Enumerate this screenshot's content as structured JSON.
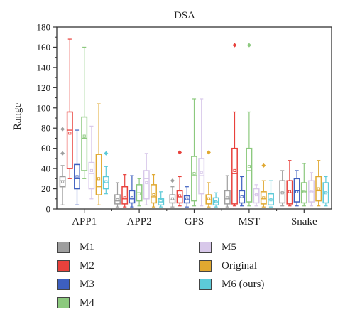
{
  "chart_data": {
    "type": "box",
    "title": "DSA",
    "ylabel": "Range",
    "xlabel": "",
    "ylim": [
      0,
      180
    ],
    "yticks": [
      "0",
      "20",
      "40",
      "60",
      "80",
      "100",
      "120",
      "140",
      "160",
      "180"
    ],
    "grid": false,
    "legend_placement": "bottom, two columns",
    "categories": [
      "APP1",
      "APP2",
      "GPS",
      "MST",
      "Snake"
    ],
    "series": [
      {
        "name": "M1",
        "color": "#9e9e9e",
        "boxes": [
          {
            "whislo": 4,
            "q1": 22,
            "med": 28,
            "mean": 27,
            "q3": 32,
            "whishi": 43,
            "fliers": [
              55,
              79
            ]
          },
          {
            "whislo": 2,
            "q1": 5,
            "med": 8,
            "mean": 9,
            "q3": 14,
            "whishi": 26,
            "fliers": []
          },
          {
            "whislo": 2,
            "q1": 6,
            "med": 9,
            "mean": 10,
            "q3": 14,
            "whishi": 22,
            "fliers": [
              28
            ]
          },
          {
            "whislo": 2,
            "q1": 5,
            "med": 10,
            "mean": 11,
            "q3": 18,
            "whishi": 33,
            "fliers": []
          },
          {
            "whislo": 3,
            "q1": 6,
            "med": 16,
            "mean": 16,
            "q3": 28,
            "whishi": 38,
            "fliers": []
          }
        ]
      },
      {
        "name": "M2",
        "color": "#e8413c",
        "boxes": [
          {
            "whislo": 30,
            "q1": 40,
            "med": 78,
            "mean": 75,
            "q3": 96,
            "whishi": 168,
            "fliers": []
          },
          {
            "whislo": 2,
            "q1": 5,
            "med": 10,
            "mean": 11,
            "q3": 22,
            "whishi": 34,
            "fliers": []
          },
          {
            "whislo": 3,
            "q1": 6,
            "med": 12,
            "mean": 13,
            "q3": 18,
            "whishi": 32,
            "fliers": [
              56
            ]
          },
          {
            "whislo": 3,
            "q1": 5,
            "med": 35,
            "mean": 38,
            "q3": 60,
            "whishi": 96,
            "fliers": [
              162
            ]
          },
          {
            "whislo": 3,
            "q1": 5,
            "med": 16,
            "mean": 17,
            "q3": 28,
            "whishi": 48,
            "fliers": []
          }
        ]
      },
      {
        "name": "M3",
        "color": "#3d5fbf",
        "boxes": [
          {
            "whislo": 4,
            "q1": 20,
            "med": 30,
            "mean": 32,
            "q3": 44,
            "whishi": 78,
            "fliers": []
          },
          {
            "whislo": 2,
            "q1": 6,
            "med": 10,
            "mean": 11,
            "q3": 18,
            "whishi": 33,
            "fliers": []
          },
          {
            "whislo": 2,
            "q1": 6,
            "med": 9,
            "mean": 10,
            "q3": 13,
            "whishi": 22,
            "fliers": []
          },
          {
            "whislo": 3,
            "q1": 6,
            "med": 11,
            "mean": 12,
            "q3": 18,
            "whishi": 32,
            "fliers": []
          },
          {
            "whislo": 3,
            "q1": 7,
            "med": 18,
            "mean": 17,
            "q3": 30,
            "whishi": 38,
            "fliers": []
          }
        ]
      },
      {
        "name": "M4",
        "color": "#8cc97e",
        "boxes": [
          {
            "whislo": 30,
            "q1": 38,
            "med": 70,
            "mean": 72,
            "q3": 91,
            "whishi": 160,
            "fliers": []
          },
          {
            "whislo": 3,
            "q1": 8,
            "med": 16,
            "mean": 15,
            "q3": 24,
            "whishi": 30,
            "fliers": []
          },
          {
            "whislo": 3,
            "q1": 8,
            "med": 33,
            "mean": 35,
            "q3": 52,
            "whishi": 109,
            "fliers": []
          },
          {
            "whislo": 3,
            "q1": 7,
            "med": 38,
            "mean": 42,
            "q3": 60,
            "whishi": 96,
            "fliers": [
              162
            ]
          },
          {
            "whislo": 3,
            "q1": 6,
            "med": 17,
            "mean": 17,
            "q3": 26,
            "whishi": 45,
            "fliers": []
          }
        ]
      },
      {
        "name": "M5",
        "color": "#d8c8ea",
        "boxes": [
          {
            "whislo": 10,
            "q1": 20,
            "med": 35,
            "mean": 38,
            "q3": 46,
            "whishi": 82,
            "fliers": []
          },
          {
            "whislo": 4,
            "q1": 10,
            "med": 30,
            "mean": 26,
            "q3": 38,
            "whishi": 55,
            "fliers": []
          },
          {
            "whislo": 3,
            "q1": 15,
            "med": 33,
            "mean": 36,
            "q3": 50,
            "whishi": 109,
            "fliers": []
          },
          {
            "whislo": 3,
            "q1": 6,
            "med": 14,
            "mean": 14,
            "q3": 20,
            "whishi": 24,
            "fliers": []
          },
          {
            "whislo": 3,
            "q1": 7,
            "med": 17,
            "mean": 17,
            "q3": 28,
            "whishi": 36,
            "fliers": []
          }
        ]
      },
      {
        "name": "Original",
        "color": "#e0a830",
        "boxes": [
          {
            "whislo": 4,
            "q1": 14,
            "med": 22,
            "mean": 30,
            "q3": 54,
            "whishi": 104,
            "fliers": []
          },
          {
            "whislo": 2,
            "q1": 6,
            "med": 12,
            "mean": 14,
            "q3": 24,
            "whishi": 34,
            "fliers": []
          },
          {
            "whislo": 2,
            "q1": 5,
            "med": 9,
            "mean": 10,
            "q3": 14,
            "whishi": 26,
            "fliers": [
              56
            ]
          },
          {
            "whislo": 2,
            "q1": 5,
            "med": 10,
            "mean": 11,
            "q3": 17,
            "whishi": 28,
            "fliers": [
              43
            ]
          },
          {
            "whislo": 3,
            "q1": 8,
            "med": 18,
            "mean": 20,
            "q3": 32,
            "whishi": 48,
            "fliers": []
          }
        ]
      },
      {
        "name": "M6 (ours)",
        "color": "#5ccad8",
        "boxes": [
          {
            "whislo": 15,
            "q1": 20,
            "med": 26,
            "mean": 27,
            "q3": 32,
            "whishi": 42,
            "fliers": [
              55
            ]
          },
          {
            "whislo": 2,
            "q1": 4,
            "med": 7,
            "mean": 8,
            "q3": 10,
            "whishi": 17,
            "fliers": []
          },
          {
            "whislo": 2,
            "q1": 4,
            "med": 7,
            "mean": 7,
            "q3": 11,
            "whishi": 16,
            "fliers": []
          },
          {
            "whislo": 2,
            "q1": 4,
            "med": 9,
            "mean": 9,
            "q3": 15,
            "whishi": 28,
            "fliers": []
          },
          {
            "whislo": 3,
            "q1": 6,
            "med": 16,
            "mean": 16,
            "q3": 26,
            "whishi": 32,
            "fliers": []
          }
        ]
      }
    ]
  }
}
